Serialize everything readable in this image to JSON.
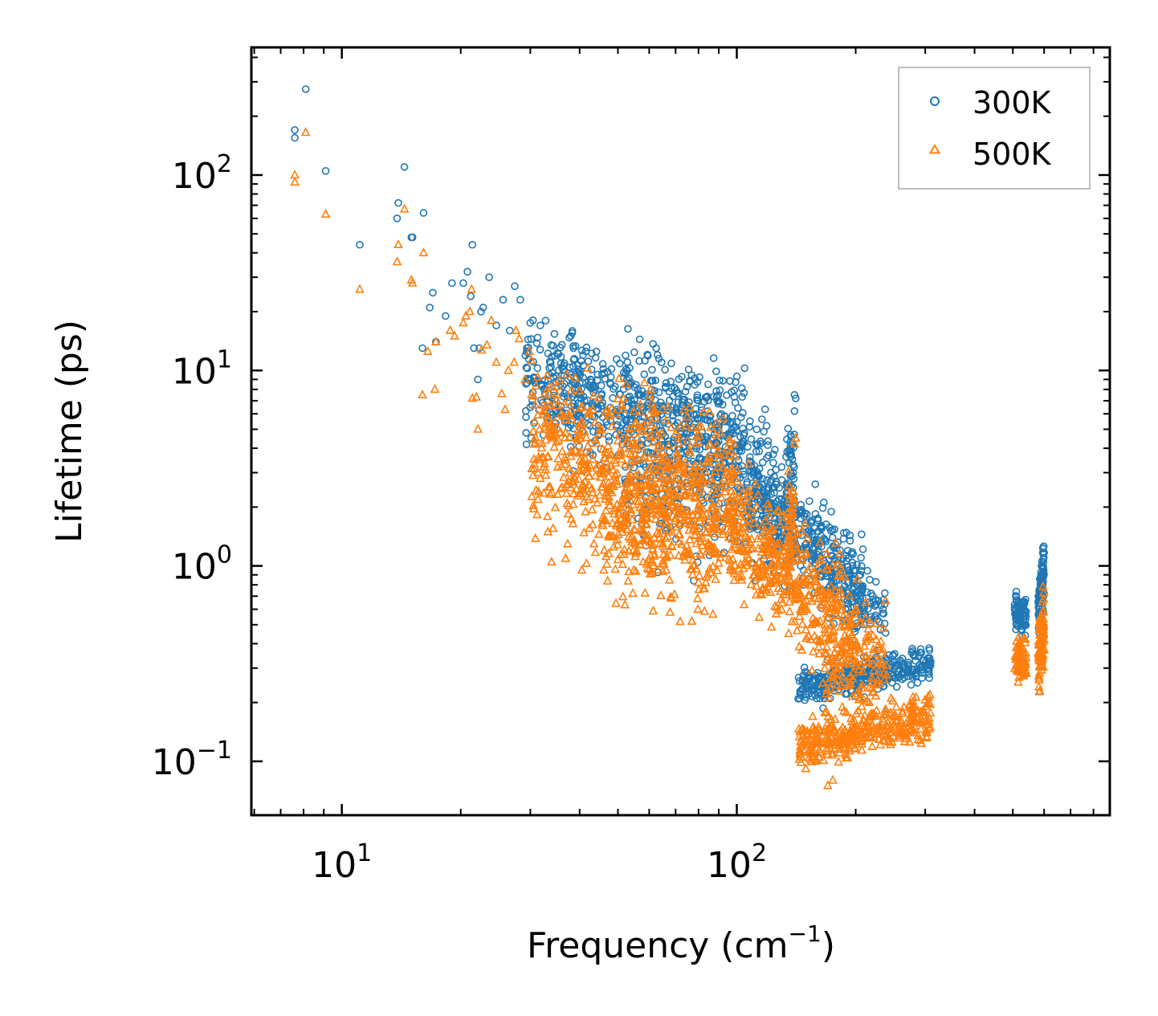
{
  "chart_data": {
    "type": "scatter",
    "x_scale": "log",
    "y_scale": "log",
    "xlim": [
      5.9,
      880
    ],
    "ylim": [
      0.053,
      450
    ],
    "xlabel": "Frequency (cm",
    "xlabel_sup": "−1",
    "xlabel_suffix": ")",
    "ylabel": "Lifetime (ps)",
    "x_ticks": [
      {
        "value": 10,
        "base": "10",
        "exp": "1"
      },
      {
        "value": 100,
        "base": "10",
        "exp": "2"
      }
    ],
    "y_ticks": [
      {
        "value": 0.1,
        "base": "10",
        "exp": "−1"
      },
      {
        "value": 1,
        "base": "10",
        "exp": "0"
      },
      {
        "value": 10,
        "base": "10",
        "exp": "1"
      },
      {
        "value": 100,
        "base": "10",
        "exp": "2"
      }
    ],
    "legend_position": "top-right",
    "series": [
      {
        "name": "300K",
        "marker": "circle",
        "color": "#1f77b4",
        "points": [
          [
            7.6,
            170
          ],
          [
            7.6,
            155
          ],
          [
            8.1,
            275
          ],
          [
            9.1,
            105
          ],
          [
            11.1,
            44
          ],
          [
            13.8,
            60
          ],
          [
            13.9,
            72
          ],
          [
            14.4,
            110
          ],
          [
            15.0,
            48
          ],
          [
            15.1,
            48
          ],
          [
            16.1,
            64
          ],
          [
            16.0,
            13
          ],
          [
            16.7,
            21
          ],
          [
            17.0,
            25
          ],
          [
            17.3,
            14
          ],
          [
            18.3,
            19
          ],
          [
            19.0,
            28
          ],
          [
            20.3,
            28
          ],
          [
            20.8,
            32
          ],
          [
            21.2,
            24
          ],
          [
            21.4,
            44
          ],
          [
            21.6,
            13
          ],
          [
            22.1,
            9
          ],
          [
            22.5,
            20
          ],
          [
            22.8,
            21
          ],
          [
            22.3,
            13
          ],
          [
            23.6,
            30
          ],
          [
            24.6,
            17
          ],
          [
            25.6,
            23
          ],
          [
            26.6,
            16
          ],
          [
            27.4,
            27
          ],
          [
            28.3,
            23
          ],
          [
            29.4,
            13
          ],
          [
            30.0,
            17.5
          ],
          [
            31.8,
            17
          ],
          [
            32.8,
            18
          ],
          [
            33.9,
            13.5
          ],
          [
            38.0,
            15
          ],
          [
            38.6,
            13
          ],
          [
            40.8,
            12
          ],
          [
            62.5,
            13
          ],
          [
            63.0,
            12
          ],
          [
            63.5,
            11.5
          ],
          [
            64.5,
            11
          ],
          [
            108,
            5.5
          ],
          [
            122,
            3.0
          ],
          [
            140,
            7.5
          ],
          [
            141,
            7.2
          ],
          [
            140,
            6.2
          ],
          [
            207,
            1.45
          ],
          [
            217,
            0.85
          ],
          [
            225,
            0.83
          ],
          [
            235,
            0.67
          ]
        ],
        "clusters": [
          {
            "x_range": [
              29,
              105
            ],
            "y_center": [
              8.5,
              5.0
            ],
            "y_spread": 0.42,
            "count": 650
          },
          {
            "x_range": [
              52,
              125
            ],
            "y_center": [
              3.2,
              2.2
            ],
            "y_spread": 0.55,
            "count": 300
          },
          {
            "x_range": [
              105,
              210
            ],
            "y_center": [
              2.5,
              0.75
            ],
            "y_spread": 0.33,
            "count": 420
          },
          {
            "x_range": [
              133,
              140
            ],
            "y_center": [
              3.0,
              3.5
            ],
            "y_spread": 0.33,
            "count": 40
          },
          {
            "x_range": [
              143,
              310
            ],
            "y_center": [
              0.235,
              0.32
            ],
            "y_spread": 0.12,
            "count": 320
          },
          {
            "x_range": [
              185,
              238
            ],
            "y_center": [
              0.62,
              0.6
            ],
            "y_spread": 0.2,
            "count": 60
          },
          {
            "x_range": [
              505,
              540
            ],
            "y_center": [
              0.6,
              0.55
            ],
            "y_spread": 0.14,
            "count": 80
          },
          {
            "x_range": [
              580,
              600
            ],
            "y_center": [
              0.6,
              0.95
            ],
            "y_spread": 0.2,
            "count": 110
          }
        ]
      },
      {
        "name": "500K",
        "marker": "triangle",
        "color": "#ff7f0e",
        "points": [
          [
            7.6,
            100
          ],
          [
            7.6,
            92
          ],
          [
            8.1,
            165
          ],
          [
            9.1,
            63
          ],
          [
            11.1,
            26
          ],
          [
            13.8,
            36
          ],
          [
            13.9,
            44
          ],
          [
            14.4,
            67
          ],
          [
            15.0,
            29
          ],
          [
            15.1,
            28
          ],
          [
            16.0,
            7.5
          ],
          [
            16.1,
            40
          ],
          [
            16.5,
            12.5
          ],
          [
            17.2,
            8
          ],
          [
            17.3,
            14
          ],
          [
            18.8,
            16
          ],
          [
            19.3,
            15
          ],
          [
            20.3,
            17.5
          ],
          [
            20.6,
            19
          ],
          [
            21.1,
            20
          ],
          [
            21.3,
            26
          ],
          [
            21.4,
            7.2
          ],
          [
            21.9,
            7.3
          ],
          [
            22.1,
            5.0
          ],
          [
            22.6,
            12.7
          ],
          [
            23.3,
            13.5
          ],
          [
            23.9,
            18
          ],
          [
            24.6,
            11
          ],
          [
            25.4,
            7.6
          ],
          [
            25.9,
            6.3
          ],
          [
            26.4,
            10
          ],
          [
            27.3,
            11
          ],
          [
            27.6,
            16
          ],
          [
            28.1,
            14.5
          ],
          [
            29.1,
            9
          ],
          [
            29.8,
            12.5
          ],
          [
            30.8,
            5.5
          ],
          [
            31.8,
            2.8
          ],
          [
            32.8,
            3.1
          ],
          [
            33.4,
            8.2
          ],
          [
            60.5,
            8.0
          ],
          [
            61.0,
            6.8
          ],
          [
            62.0,
            5.0
          ],
          [
            141,
            4.5
          ],
          [
            140,
            4.2
          ],
          [
            170,
            0.075
          ],
          [
            175,
            0.08
          ]
        ],
        "clusters": [
          {
            "x_range": [
              30,
              100
            ],
            "y_center": [
              4.0,
              2.3
            ],
            "y_spread": 0.55,
            "count": 650
          },
          {
            "x_range": [
              45,
              90
            ],
            "y_center": [
              1.6,
              1.2
            ],
            "y_spread": 0.5,
            "count": 260
          },
          {
            "x_range": [
              95,
              205
            ],
            "y_center": [
              1.6,
              0.45
            ],
            "y_spread": 0.42,
            "count": 450
          },
          {
            "x_range": [
              133,
              140
            ],
            "y_center": [
              1.4,
              2.0
            ],
            "y_spread": 0.4,
            "count": 40
          },
          {
            "x_range": [
              143,
              310
            ],
            "y_center": [
              0.12,
              0.17
            ],
            "y_spread": 0.16,
            "count": 360
          },
          {
            "x_range": [
              165,
              240
            ],
            "y_center": [
              0.3,
              0.35
            ],
            "y_spread": 0.35,
            "count": 120
          },
          {
            "x_range": [
              505,
              540
            ],
            "y_center": [
              0.34,
              0.32
            ],
            "y_spread": 0.14,
            "count": 80
          },
          {
            "x_range": [
              580,
              600
            ],
            "y_center": [
              0.3,
              0.5
            ],
            "y_spread": 0.25,
            "count": 110
          }
        ]
      }
    ]
  }
}
